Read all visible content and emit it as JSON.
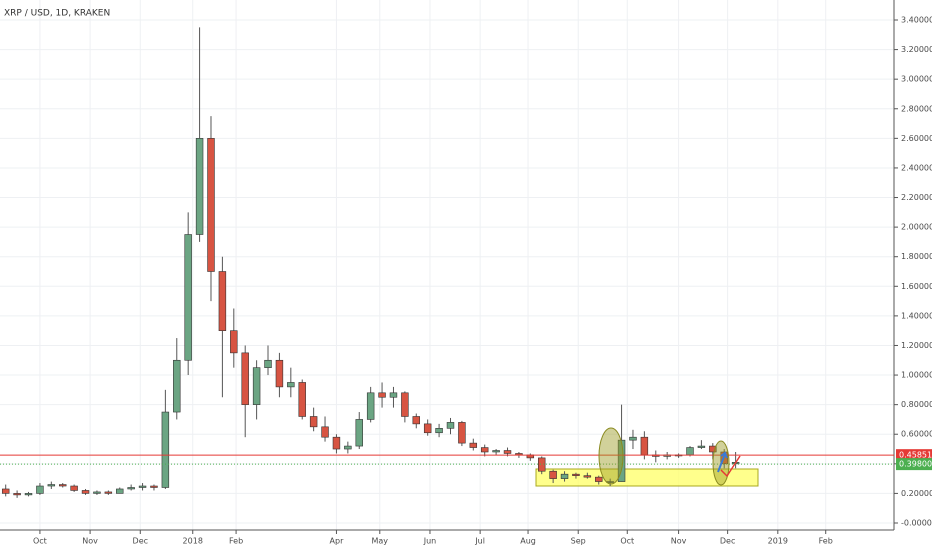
{
  "chart_data": {
    "type": "candlestick",
    "title": "XRP / USD, 1D, KRAKEN",
    "up_color": "#6ba583",
    "down_color": "#d75442",
    "open": [
      0.23,
      0.2,
      0.19,
      0.2,
      0.25,
      0.26,
      0.25,
      0.22,
      0.2,
      0.21,
      0.2,
      0.23,
      0.24,
      0.25,
      0.24,
      0.75,
      1.1,
      1.95,
      2.6,
      1.7,
      1.3,
      1.15,
      0.8,
      1.05,
      1.1,
      0.92,
      0.95,
      0.72,
      0.65,
      0.58,
      0.5,
      0.52,
      0.7,
      0.88,
      0.85,
      0.88,
      0.72,
      0.67,
      0.61,
      0.64,
      0.68,
      0.54,
      0.51,
      0.48,
      0.49,
      0.47,
      0.46,
      0.44,
      0.35,
      0.3,
      0.33,
      0.32,
      0.31,
      0.28,
      0.28,
      0.56,
      0.58,
      0.46,
      0.45,
      0.46,
      0.46,
      0.51,
      0.52,
      0.48,
      0.4
    ],
    "high": [
      0.26,
      0.22,
      0.21,
      0.27,
      0.28,
      0.27,
      0.26,
      0.23,
      0.22,
      0.22,
      0.24,
      0.26,
      0.27,
      0.26,
      0.9,
      1.25,
      2.1,
      3.35,
      2.75,
      1.8,
      1.45,
      1.2,
      1.1,
      1.2,
      1.15,
      1.05,
      0.97,
      0.78,
      0.72,
      0.6,
      0.55,
      0.75,
      0.92,
      0.95,
      0.92,
      0.89,
      0.74,
      0.7,
      0.67,
      0.71,
      0.69,
      0.57,
      0.53,
      0.5,
      0.51,
      0.48,
      0.47,
      0.45,
      0.36,
      0.35,
      0.34,
      0.34,
      0.32,
      0.3,
      0.8,
      0.63,
      0.62,
      0.49,
      0.48,
      0.47,
      0.52,
      0.56,
      0.54,
      0.5,
      0.48
    ],
    "low": [
      0.18,
      0.17,
      0.18,
      0.19,
      0.23,
      0.24,
      0.21,
      0.19,
      0.19,
      0.19,
      0.2,
      0.22,
      0.22,
      0.22,
      0.23,
      0.7,
      1.0,
      1.9,
      1.5,
      0.85,
      1.05,
      0.58,
      0.7,
      1.0,
      0.85,
      0.85,
      0.7,
      0.62,
      0.55,
      0.47,
      0.47,
      0.5,
      0.68,
      0.78,
      0.78,
      0.68,
      0.64,
      0.59,
      0.58,
      0.6,
      0.52,
      0.49,
      0.45,
      0.46,
      0.45,
      0.44,
      0.42,
      0.33,
      0.27,
      0.28,
      0.3,
      0.3,
      0.26,
      0.25,
      0.28,
      0.5,
      0.43,
      0.41,
      0.43,
      0.44,
      0.45,
      0.5,
      0.43,
      0.37,
      0.37
    ],
    "close": [
      0.2,
      0.19,
      0.2,
      0.25,
      0.26,
      0.25,
      0.22,
      0.2,
      0.21,
      0.2,
      0.23,
      0.24,
      0.25,
      0.24,
      0.75,
      1.1,
      1.95,
      2.6,
      1.7,
      1.3,
      1.15,
      0.8,
      1.05,
      1.1,
      0.92,
      0.95,
      0.72,
      0.65,
      0.58,
      0.5,
      0.52,
      0.7,
      0.88,
      0.85,
      0.88,
      0.72,
      0.67,
      0.61,
      0.64,
      0.68,
      0.54,
      0.51,
      0.48,
      0.49,
      0.47,
      0.46,
      0.44,
      0.35,
      0.3,
      0.33,
      0.32,
      0.31,
      0.28,
      0.28,
      0.56,
      0.58,
      0.46,
      0.45,
      0.46,
      0.46,
      0.51,
      0.52,
      0.48,
      0.4,
      0.41
    ],
    "xlim": [
      -0.5,
      77.8
    ],
    "xticks": [
      {
        "value": 3.0,
        "label": "Oct"
      },
      {
        "value": 7.4,
        "label": "Nov"
      },
      {
        "value": 11.8,
        "label": "Dec"
      },
      {
        "value": 16.4,
        "label": "2018"
      },
      {
        "value": 20.2,
        "label": "Feb"
      },
      {
        "value": 29.0,
        "label": "Apr"
      },
      {
        "value": 32.8,
        "label": "May"
      },
      {
        "value": 37.2,
        "label": "Jun"
      },
      {
        "value": 41.6,
        "label": "Jul"
      },
      {
        "value": 45.8,
        "label": "Aug"
      },
      {
        "value": 50.2,
        "label": "Sep"
      },
      {
        "value": 54.5,
        "label": "Oct"
      },
      {
        "value": 59.0,
        "label": "Nov"
      },
      {
        "value": 63.3,
        "label": "Dec"
      },
      {
        "value": 67.7,
        "label": "2019"
      },
      {
        "value": 71.9,
        "label": "Feb"
      }
    ],
    "ylim": [
      0,
      3.4
    ],
    "yticks": [
      {
        "value": 0,
        "label": "-0.00000"
      },
      {
        "value": 0.2,
        "label": "0.20000"
      },
      {
        "value": 0.4,
        "label": "0.40000"
      },
      {
        "value": 0.6,
        "label": "0.60000"
      },
      {
        "value": 0.8,
        "label": "0.80000"
      },
      {
        "value": 1.0,
        "label": "1.00000"
      },
      {
        "value": 1.2,
        "label": "1.20000"
      },
      {
        "value": 1.4,
        "label": "1.40000"
      },
      {
        "value": 1.6,
        "label": "1.60000"
      },
      {
        "value": 1.8,
        "label": "1.80000"
      },
      {
        "value": 2.0,
        "label": "2.00000"
      },
      {
        "value": 2.2,
        "label": "2.20000"
      },
      {
        "value": 2.4,
        "label": "2.40000"
      },
      {
        "value": 2.6,
        "label": "2.60000"
      },
      {
        "value": 2.8,
        "label": "2.80000"
      },
      {
        "value": 3.0,
        "label": "3.00000"
      },
      {
        "value": 3.2,
        "label": "3.20000"
      },
      {
        "value": 3.4,
        "label": "3.40000"
      }
    ],
    "grid": true,
    "price_lines": [
      {
        "value": 0.45851,
        "label": "0.45851",
        "color": "#e53935",
        "style": "solid"
      },
      {
        "value": 0.398,
        "label": "0.39800",
        "color": "#4caf50",
        "style": "dotted"
      }
    ]
  }
}
